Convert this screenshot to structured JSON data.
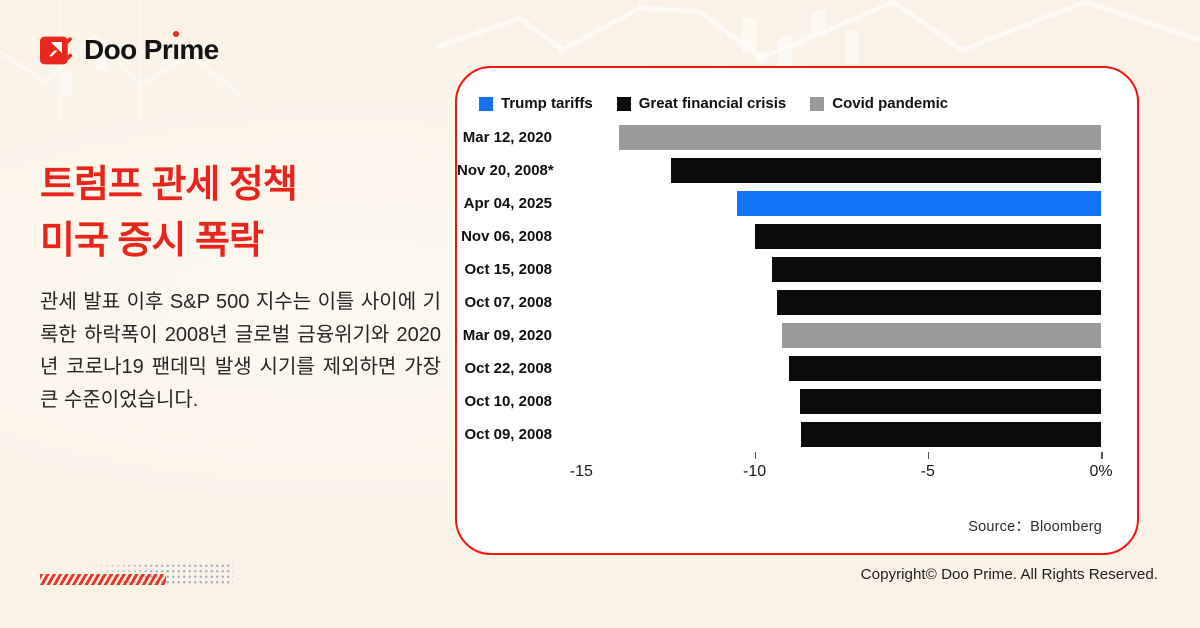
{
  "brand": {
    "logo_part1": "Doo Pr",
    "logo_i": "ı",
    "logo_part2": "me"
  },
  "headline": {
    "line1": "트럼프 관세 정책",
    "line2": "미국 증시 폭락"
  },
  "body_text": "관세 발표 이후 S&P 500 지수는 이틀 사이에 기록한 하락폭이 2008년 글로벌 금융위기와 2020년 코로나19 팬데믹 발생 시기를 제외하면 가장 큰 수준이었습니다.",
  "chart_data": {
    "type": "bar",
    "orientation": "horizontal",
    "title": "",
    "xlabel": "",
    "ylabel": "",
    "unit": "%",
    "xlim": [
      -15.5,
      0
    ],
    "grid": false,
    "legend_position": "top",
    "colors": {
      "trump": "#1173f7",
      "gfc": "#0b0b0b",
      "covid": "#9a9a9a"
    },
    "legend": [
      {
        "label": "Trump tariffs",
        "key": "trump"
      },
      {
        "label": "Great financial crisis",
        "key": "gfc"
      },
      {
        "label": "Covid pandemic",
        "key": "covid"
      }
    ],
    "categories": [
      "Mar 12, 2020",
      "Nov 20, 2008*",
      "Apr 04, 2025",
      "Nov 06, 2008",
      "Oct 15, 2008",
      "Oct 07, 2008",
      "Mar 09, 2020",
      "Oct 22, 2008",
      "Oct 10, 2008",
      "Oct 09, 2008"
    ],
    "values": [
      -13.9,
      -12.4,
      -10.5,
      -10.0,
      -9.5,
      -9.35,
      -9.2,
      -9.0,
      -8.7,
      -8.65
    ],
    "series_key": [
      "covid",
      "gfc",
      "trump",
      "gfc",
      "gfc",
      "gfc",
      "covid",
      "gfc",
      "gfc",
      "gfc"
    ],
    "ticks": [
      {
        "label": "-15",
        "value": -15,
        "mark": false
      },
      {
        "label": "-10",
        "value": -10,
        "mark": true
      },
      {
        "label": "-5",
        "value": -5,
        "mark": true
      },
      {
        "label": "0%",
        "value": 0,
        "mark": true
      }
    ],
    "source": "Source：Bloomberg"
  },
  "footer": {
    "copyright": "Copyright© Doo Prime. All Rights Reserved."
  }
}
